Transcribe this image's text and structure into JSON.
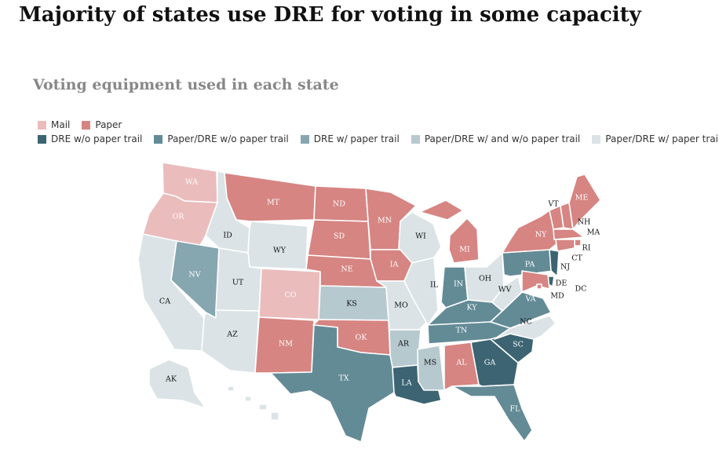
{
  "title": "Majority of states use DRE for voting in some capacity",
  "subtitle": "Voting equipment used in each state",
  "categories": [
    {
      "key": "mail",
      "label": "Mail",
      "color": "#ebbcbc"
    },
    {
      "key": "paper",
      "label": "Paper",
      "color": "#d68582"
    },
    {
      "key": "dre_wo",
      "label": "DRE w/o paper trail",
      "color": "#3c6472"
    },
    {
      "key": "pdre_wo",
      "label": "Paper/DRE w/o paper trail",
      "color": "#638b96"
    },
    {
      "key": "dre_w",
      "label": "DRE w/ paper trail",
      "color": "#86a6b0"
    },
    {
      "key": "pdre_wwo",
      "label": "Paper/DRE w/ and w/o paper trail",
      "color": "#b6c9cf"
    },
    {
      "key": "pdre_w",
      "label": "Paper/DRE w/ paper trail",
      "color": "#dbe3e6"
    }
  ],
  "legend_rows": [
    [
      "mail",
      "paper"
    ],
    [
      "dre_wo",
      "pdre_wo",
      "dre_w",
      "pdre_wwo",
      "pdre_w"
    ]
  ],
  "states": [
    {
      "abbr": "WA",
      "cat": "mail"
    },
    {
      "abbr": "OR",
      "cat": "mail"
    },
    {
      "abbr": "CO",
      "cat": "mail"
    },
    {
      "abbr": "CA",
      "cat": "pdre_w"
    },
    {
      "abbr": "NV",
      "cat": "dre_w"
    },
    {
      "abbr": "ID",
      "cat": "pdre_w"
    },
    {
      "abbr": "MT",
      "cat": "paper"
    },
    {
      "abbr": "WY",
      "cat": "pdre_w"
    },
    {
      "abbr": "UT",
      "cat": "pdre_w"
    },
    {
      "abbr": "AZ",
      "cat": "pdre_w"
    },
    {
      "abbr": "NM",
      "cat": "paper"
    },
    {
      "abbr": "ND",
      "cat": "paper"
    },
    {
      "abbr": "SD",
      "cat": "paper"
    },
    {
      "abbr": "NE",
      "cat": "paper"
    },
    {
      "abbr": "KS",
      "cat": "pdre_wwo"
    },
    {
      "abbr": "OK",
      "cat": "paper"
    },
    {
      "abbr": "TX",
      "cat": "pdre_wo"
    },
    {
      "abbr": "MN",
      "cat": "paper"
    },
    {
      "abbr": "IA",
      "cat": "paper"
    },
    {
      "abbr": "MO",
      "cat": "pdre_w"
    },
    {
      "abbr": "AR",
      "cat": "pdre_wwo"
    },
    {
      "abbr": "LA",
      "cat": "dre_wo"
    },
    {
      "abbr": "WI",
      "cat": "pdre_w"
    },
    {
      "abbr": "IL",
      "cat": "pdre_w"
    },
    {
      "abbr": "MI",
      "cat": "paper"
    },
    {
      "abbr": "IN",
      "cat": "pdre_wo"
    },
    {
      "abbr": "OH",
      "cat": "pdre_w"
    },
    {
      "abbr": "KY",
      "cat": "pdre_wo"
    },
    {
      "abbr": "TN",
      "cat": "pdre_wo"
    },
    {
      "abbr": "MS",
      "cat": "pdre_wwo"
    },
    {
      "abbr": "AL",
      "cat": "paper"
    },
    {
      "abbr": "GA",
      "cat": "dre_wo"
    },
    {
      "abbr": "FL",
      "cat": "pdre_wo"
    },
    {
      "abbr": "SC",
      "cat": "dre_wo"
    },
    {
      "abbr": "NC",
      "cat": "pdre_w"
    },
    {
      "abbr": "VA",
      "cat": "pdre_wo"
    },
    {
      "abbr": "WV",
      "cat": "pdre_w"
    },
    {
      "abbr": "PA",
      "cat": "pdre_wo"
    },
    {
      "abbr": "NY",
      "cat": "paper"
    },
    {
      "abbr": "VT",
      "cat": "paper"
    },
    {
      "abbr": "NH",
      "cat": "paper"
    },
    {
      "abbr": "ME",
      "cat": "paper"
    },
    {
      "abbr": "MA",
      "cat": "paper"
    },
    {
      "abbr": "RI",
      "cat": "paper"
    },
    {
      "abbr": "CT",
      "cat": "paper"
    },
    {
      "abbr": "NJ",
      "cat": "dre_wo"
    },
    {
      "abbr": "DE",
      "cat": "dre_wo"
    },
    {
      "abbr": "MD",
      "cat": "paper"
    },
    {
      "abbr": "DC",
      "cat": "paper"
    },
    {
      "abbr": "AK",
      "cat": "pdre_w"
    },
    {
      "abbr": "HI",
      "cat": "pdre_w"
    }
  ]
}
